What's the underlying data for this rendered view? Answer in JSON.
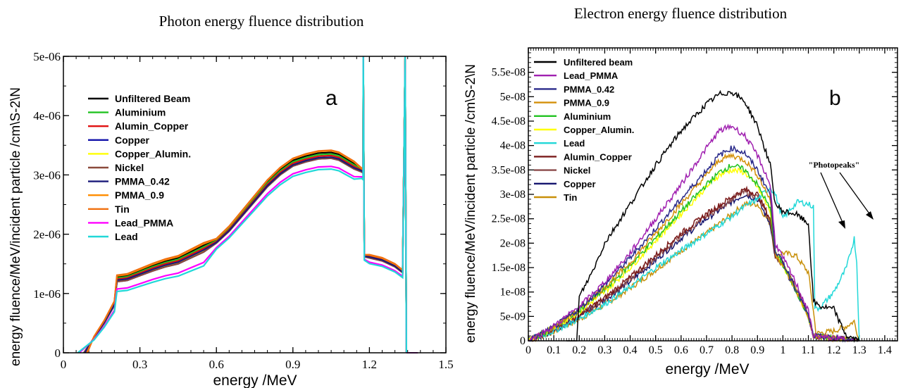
{
  "chart_data": [
    {
      "type": "line",
      "title": "Photon energy fluence distribution",
      "panel_letter": "a",
      "xlabel": "energy /MeV",
      "ylabel": "energy fluence/MeV/incident particle  /cm\\S-2\\N",
      "xlim": [
        0,
        1.5
      ],
      "ylim": [
        0,
        5e-06
      ],
      "x_ticks": [
        0,
        0.3,
        0.6,
        0.9,
        1.2,
        1.5
      ],
      "x_tick_labels": [
        "0",
        "0.3",
        "0.6",
        "0.9",
        "1.2",
        "1.5"
      ],
      "y_ticks": [
        0,
        1e-06,
        2e-06,
        3e-06,
        4e-06,
        5e-06
      ],
      "y_tick_labels": [
        "0",
        "1e-06",
        "2e-06",
        "3e-06",
        "4e-06",
        "5e-06"
      ],
      "grid": false,
      "legend_position": "top-left",
      "series": [
        {
          "name": "Unfiltered Beam",
          "color": "#000000",
          "shift": 0.05,
          "scale": 1.015
        },
        {
          "name": "Aluminium",
          "color": "#22c322",
          "shift": 0.04,
          "scale": 1.01
        },
        {
          "name": "Alumin_Copper",
          "color": "#e01010",
          "shift": 0.03,
          "scale": 1.005
        },
        {
          "name": "Copper",
          "color": "#1111aa",
          "shift": 0.0,
          "scale": 1.0
        },
        {
          "name": "Copper_Alumin.",
          "color": "#ffff00",
          "shift": 0.01,
          "scale": 1.0
        },
        {
          "name": "Nickel",
          "color": "#8b4a3c",
          "shift": 0.0,
          "scale": 1.0
        },
        {
          "name": "PMMA_0.42",
          "color": "#1a1a7a",
          "shift": 0.02,
          "scale": 1.0
        },
        {
          "name": "PMMA_0.9",
          "color": "#ff8c00",
          "shift": 0.06,
          "scale": 1.02
        },
        {
          "name": "Tin",
          "color": "#f07010",
          "shift": 0.07,
          "scale": 1.02
        },
        {
          "name": "Lead_PMMA",
          "color": "#ff00ff",
          "shift": -0.09,
          "scale": 0.985
        },
        {
          "name": "Lead",
          "color": "#22d8d8",
          "shift": -0.12,
          "scale": 0.98
        }
      ],
      "base_curve": {
        "x": [
          0.08,
          0.12,
          0.16,
          0.2,
          0.21,
          0.25,
          0.3,
          0.35,
          0.4,
          0.45,
          0.5,
          0.55,
          0.6,
          0.65,
          0.7,
          0.75,
          0.8,
          0.85,
          0.9,
          0.95,
          1.0,
          1.05,
          1.08,
          1.1,
          1.14,
          1.17,
          1.175,
          1.176,
          1.18,
          1.2,
          1.25,
          1.3,
          1.33,
          1.34,
          1.345
        ],
        "y": [
          0,
          2.5e-07,
          5e-07,
          8e-07,
          1.2e-06,
          1.22e-06,
          1.3e-06,
          1.38e-06,
          1.45e-06,
          1.5e-06,
          1.6e-06,
          1.7e-06,
          1.85e-06,
          2.05e-06,
          2.3e-06,
          2.55e-06,
          2.8e-06,
          3e-06,
          3.15e-06,
          3.22e-06,
          3.27e-06,
          3.28e-06,
          3.25e-06,
          3.2e-06,
          3.1e-06,
          3.05e-06,
          3.03e-06,
          5e-06,
          1.62e-06,
          1.6e-06,
          1.55e-06,
          1.45e-06,
          1.35e-06,
          5e-06,
          0
        ]
      }
    },
    {
      "type": "line",
      "title": "Electron energy fluence distribution",
      "panel_letter": "b",
      "xlabel": "energy /MeV",
      "ylabel": "energy fluence/MeV/incident particle  /cm\\S-2\\N",
      "xlim": [
        0,
        1.45
      ],
      "ylim": [
        0,
        6e-08
      ],
      "x_ticks": [
        0,
        0.1,
        0.2,
        0.3,
        0.4,
        0.5,
        0.6,
        0.7,
        0.8,
        0.9,
        1,
        1.1,
        1.2,
        1.3,
        1.4
      ],
      "x_tick_labels": [
        "0",
        "0.1",
        "0.2",
        "0.3",
        "0.4",
        "0.5",
        "0.6",
        "0.7",
        "0.8",
        "0.9",
        "1",
        "1.1",
        "1.2",
        "1.3",
        "1.4"
      ],
      "y_ticks": [
        0,
        5e-09,
        1e-08,
        1.5e-08,
        2e-08,
        2.5e-08,
        3e-08,
        3.5e-08,
        4e-08,
        4.5e-08,
        5e-08,
        5.5e-08
      ],
      "y_tick_labels": [
        "0",
        "5e-09",
        "1e-08",
        "1.5e-08",
        "2e-08",
        "2.5e-08",
        "3e-08",
        "3.5e-08",
        "4e-08",
        "4.5e-08",
        "5e-08",
        "5.5e-08"
      ],
      "grid": false,
      "legend_position": "top-left",
      "annotation": "\"Photopeaks\"",
      "series": [
        {
          "name": "Unfiltered beam",
          "color": "#000000",
          "x": [
            0.15,
            0.19,
            0.2,
            0.25,
            0.3,
            0.4,
            0.5,
            0.6,
            0.7,
            0.75,
            0.8,
            0.85,
            0.9,
            0.95,
            0.97,
            1.0,
            1.05,
            1.1,
            1.12,
            1.15,
            1.2,
            1.23,
            1.25,
            1.3
          ],
          "y": [
            0,
            0,
            9e-09,
            1.4e-08,
            2e-08,
            2.8e-08,
            3.6e-08,
            4.3e-08,
            4.85e-08,
            5.05e-08,
            5.1e-08,
            4.9e-08,
            4.4e-08,
            3.6e-08,
            2.8e-08,
            2.65e-08,
            2.6e-08,
            2.4e-08,
            8e-09,
            7e-09,
            6.5e-09,
            3e-09,
            1e-09,
            0
          ]
        },
        {
          "name": "Lead_PMMA",
          "color": "#a020b0",
          "x": [
            0,
            0.1,
            0.2,
            0.3,
            0.4,
            0.5,
            0.6,
            0.7,
            0.75,
            0.8,
            0.85,
            0.9,
            0.95,
            0.97,
            1.0,
            1.05,
            1.1,
            1.12,
            1.2,
            1.3
          ],
          "y": [
            0,
            3e-09,
            7e-09,
            1.2e-08,
            1.8e-08,
            2.5e-08,
            3.2e-08,
            3.95e-08,
            4.3e-08,
            4.4e-08,
            4.2e-08,
            3.8e-08,
            3.2e-08,
            2e-08,
            1.7e-08,
            1.2e-08,
            6e-09,
            1e-09,
            5e-10,
            0
          ]
        },
        {
          "name": "PMMA_0.42",
          "color": "#2a2a8a",
          "x": [
            0,
            0.1,
            0.2,
            0.3,
            0.4,
            0.5,
            0.6,
            0.7,
            0.75,
            0.8,
            0.85,
            0.9,
            0.95,
            0.97,
            1.0,
            1.05,
            1.1,
            1.12,
            1.2,
            1.3
          ],
          "y": [
            0,
            2.8e-09,
            6.5e-09,
            1.15e-08,
            1.7e-08,
            2.3e-08,
            2.9e-08,
            3.5e-08,
            3.8e-08,
            3.95e-08,
            3.85e-08,
            3.5e-08,
            3e-08,
            1.85e-08,
            1.6e-08,
            1.1e-08,
            5e-09,
            1e-09,
            5e-10,
            0
          ]
        },
        {
          "name": "PMMA_0.9",
          "color": "#d4900a",
          "x": [
            0,
            0.1,
            0.2,
            0.3,
            0.4,
            0.5,
            0.6,
            0.7,
            0.75,
            0.8,
            0.85,
            0.9,
            0.95,
            0.97,
            1.0,
            1.05,
            1.1,
            1.12,
            1.2,
            1.3
          ],
          "y": [
            0,
            2.8e-09,
            6.5e-09,
            1.1e-08,
            1.6e-08,
            2.2e-08,
            2.8e-08,
            3.4e-08,
            3.7e-08,
            3.8e-08,
            3.7e-08,
            3.4e-08,
            2.9e-08,
            1.8e-08,
            1.55e-08,
            1.05e-08,
            5e-09,
            1e-09,
            5e-10,
            0
          ]
        },
        {
          "name": "Aluminium",
          "color": "#22c322",
          "x": [
            0,
            0.1,
            0.2,
            0.3,
            0.4,
            0.5,
            0.6,
            0.7,
            0.75,
            0.8,
            0.85,
            0.9,
            0.95,
            0.97,
            1.0,
            1.05,
            1.1,
            1.12,
            1.2,
            1.3
          ],
          "y": [
            0,
            2.7e-09,
            6.3e-09,
            1.05e-08,
            1.55e-08,
            2.1e-08,
            2.65e-08,
            3.2e-08,
            3.45e-08,
            3.6e-08,
            3.5e-08,
            3.2e-08,
            2.7e-08,
            1.8e-08,
            1.55e-08,
            1.05e-08,
            5e-09,
            1e-09,
            5e-10,
            0
          ]
        },
        {
          "name": "Copper_Alumin.",
          "color": "#ffff00",
          "x": [
            0,
            0.1,
            0.2,
            0.3,
            0.4,
            0.5,
            0.6,
            0.7,
            0.75,
            0.8,
            0.85,
            0.9,
            0.95,
            0.97,
            1.0,
            1.05,
            1.1,
            1.12,
            1.2,
            1.3
          ],
          "y": [
            0,
            2.6e-09,
            6e-09,
            1e-08,
            1.5e-08,
            2.05e-08,
            2.6e-08,
            3.15e-08,
            3.4e-08,
            3.5e-08,
            3.45e-08,
            3.15e-08,
            2.65e-08,
            1.8e-08,
            1.55e-08,
            1.05e-08,
            5e-09,
            1e-09,
            5e-10,
            0
          ]
        },
        {
          "name": "Lead",
          "color": "#22d8d8",
          "x": [
            0,
            0.1,
            0.2,
            0.3,
            0.4,
            0.5,
            0.6,
            0.7,
            0.8,
            0.85,
            0.9,
            0.95,
            0.97,
            1.0,
            1.03,
            1.06,
            1.1,
            1.12,
            1.125,
            1.13,
            1.15,
            1.2,
            1.25,
            1.27,
            1.28,
            1.29,
            1.3
          ],
          "y": [
            0,
            2e-09,
            4.5e-09,
            7.5e-09,
            1.1e-08,
            1.5e-08,
            1.85e-08,
            2.2e-08,
            2.55e-08,
            2.75e-08,
            2.9e-08,
            3.15e-08,
            3e-08,
            2.5e-08,
            2.7e-08,
            2.85e-08,
            2.8e-08,
            2.75e-08,
            7e-09,
            6.5e-09,
            7e-09,
            1e-08,
            1.5e-08,
            1.9e-08,
            2.1e-08,
            1.6e-08,
            0
          ]
        },
        {
          "name": "Alumin_Copper",
          "color": "#7a1a1a",
          "x": [
            0,
            0.1,
            0.2,
            0.3,
            0.4,
            0.5,
            0.6,
            0.7,
            0.8,
            0.85,
            0.9,
            0.95,
            0.97,
            1.0,
            1.05,
            1.1,
            1.12,
            1.2,
            1.3
          ],
          "y": [
            0,
            2.3e-09,
            5.3e-09,
            8.8e-09,
            1.3e-08,
            1.75e-08,
            2.2e-08,
            2.6e-08,
            2.95e-08,
            3.1e-08,
            3e-08,
            2.5e-08,
            1.75e-08,
            1.6e-08,
            1.1e-08,
            5e-09,
            1e-09,
            5e-10,
            0
          ]
        },
        {
          "name": "Nickel",
          "color": "#8b4a4a",
          "x": [
            0,
            0.1,
            0.2,
            0.3,
            0.4,
            0.5,
            0.6,
            0.7,
            0.8,
            0.85,
            0.9,
            0.95,
            0.97,
            1.0,
            1.05,
            1.1,
            1.12,
            1.2,
            1.3
          ],
          "y": [
            0,
            2.2e-09,
            5.1e-09,
            8.5e-09,
            1.25e-08,
            1.7e-08,
            2.15e-08,
            2.55e-08,
            2.9e-08,
            3.05e-08,
            2.95e-08,
            2.45e-08,
            1.72e-08,
            1.58e-08,
            1.08e-08,
            5e-09,
            1e-09,
            5e-10,
            0
          ]
        },
        {
          "name": "Copper",
          "color": "#14146e",
          "x": [
            0,
            0.1,
            0.2,
            0.3,
            0.4,
            0.5,
            0.6,
            0.7,
            0.8,
            0.85,
            0.9,
            0.95,
            0.97,
            1.0,
            1.05,
            1.1,
            1.12,
            1.2,
            1.3
          ],
          "y": [
            0,
            2.2e-09,
            5e-09,
            8.4e-09,
            1.22e-08,
            1.65e-08,
            2.1e-08,
            2.5e-08,
            2.85e-08,
            3e-08,
            2.9e-08,
            2.4e-08,
            1.7e-08,
            1.55e-08,
            1.05e-08,
            5e-09,
            1e-09,
            5e-10,
            0
          ]
        },
        {
          "name": "Tin",
          "color": "#c8900a",
          "x": [
            0,
            0.1,
            0.2,
            0.3,
            0.4,
            0.5,
            0.6,
            0.7,
            0.8,
            0.85,
            0.9,
            0.95,
            0.97,
            1.0,
            1.05,
            1.1,
            1.12,
            1.13,
            1.2,
            1.25,
            1.28,
            1.3
          ],
          "y": [
            0,
            1.9e-09,
            4.4e-09,
            7.4e-09,
            1.08e-08,
            1.45e-08,
            1.85e-08,
            2.2e-08,
            2.6e-08,
            2.8e-08,
            2.8e-08,
            2.4e-08,
            1.75e-08,
            1.8e-08,
            1.75e-08,
            1.4e-08,
            6e-09,
            1.5e-09,
            2e-09,
            3e-09,
            4e-09,
            0
          ]
        }
      ]
    }
  ]
}
